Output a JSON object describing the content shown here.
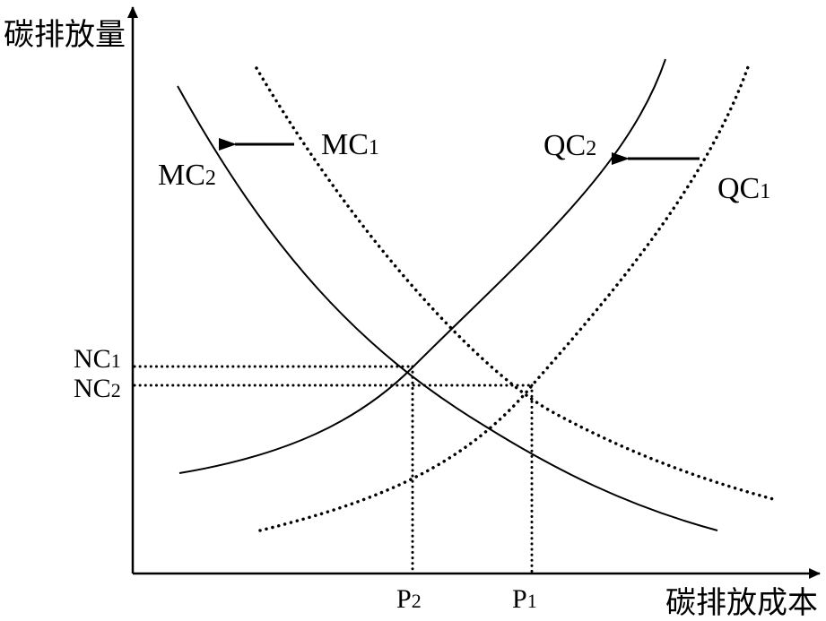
{
  "axes": {
    "y_label": "碳排放量",
    "x_label": "碳排放成本"
  },
  "curves": {
    "mc1": {
      "main": "MC",
      "sub": "1"
    },
    "mc2": {
      "main": "MC",
      "sub": "2"
    },
    "qc1": {
      "main": "QC",
      "sub": "1"
    },
    "qc2": {
      "main": "QC",
      "sub": "2"
    }
  },
  "y_ticks": {
    "nc1": {
      "main": "NC",
      "sub": "1"
    },
    "nc2": {
      "main": "NC",
      "sub": "2"
    }
  },
  "x_ticks": {
    "p2": {
      "main": "P",
      "sub": "2"
    },
    "p1": {
      "main": "P",
      "sub": "1"
    }
  }
}
